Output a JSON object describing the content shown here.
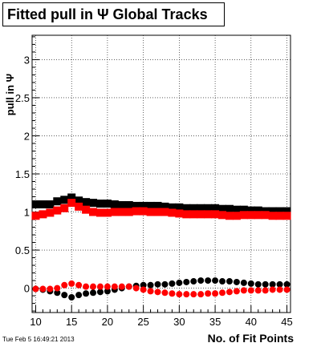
{
  "chart_data": {
    "type": "scatter",
    "title": "Fitted pull in  Ψ   Global Tracks",
    "xlabel": "No. of Fit Points",
    "ylabel": "pull in Ψ",
    "xlim": [
      9.5,
      45.5
    ],
    "ylim": [
      -0.32,
      3.32
    ],
    "xticks": [
      "10",
      "15",
      "20",
      "25",
      "30",
      "35",
      "40",
      "45"
    ],
    "yticks": [
      "0",
      "0.5",
      "1",
      "1.5",
      "2",
      "2.5",
      "3"
    ],
    "grid": true,
    "legend": "none",
    "x": [
      10,
      11,
      12,
      13,
      14,
      15,
      16,
      17,
      18,
      19,
      20,
      21,
      22,
      23,
      24,
      25,
      26,
      27,
      28,
      29,
      30,
      31,
      32,
      33,
      34,
      35,
      36,
      37,
      38,
      39,
      40,
      41,
      42,
      43,
      44,
      45
    ],
    "series": [
      {
        "color": "#000000",
        "marker": "square",
        "values": [
          1.1,
          1.1,
          1.1,
          1.14,
          1.16,
          1.19,
          1.15,
          1.13,
          1.12,
          1.11,
          1.11,
          1.1,
          1.09,
          1.09,
          1.08,
          1.08,
          1.08,
          1.08,
          1.07,
          1.06,
          1.06,
          1.05,
          1.05,
          1.05,
          1.05,
          1.05,
          1.04,
          1.04,
          1.03,
          1.03,
          1.02,
          1.02,
          1.01,
          1.01,
          1.01,
          1.01
        ]
      },
      {
        "color": "#ff0000",
        "marker": "square",
        "values": [
          0.95,
          0.97,
          0.99,
          1.02,
          1.05,
          1.12,
          1.07,
          1.03,
          1.0,
          0.99,
          0.99,
          1.0,
          1.0,
          1.0,
          1.01,
          1.01,
          1.0,
          1.0,
          1.0,
          0.99,
          0.98,
          0.97,
          0.97,
          0.97,
          0.97,
          0.97,
          0.96,
          0.95,
          0.95,
          0.96,
          0.96,
          0.96,
          0.96,
          0.95,
          0.95,
          0.95
        ]
      },
      {
        "color": "#000000",
        "marker": "circle",
        "values": [
          -0.01,
          -0.02,
          -0.04,
          -0.06,
          -0.09,
          -0.12,
          -0.09,
          -0.07,
          -0.06,
          -0.05,
          -0.04,
          -0.02,
          0.0,
          0.02,
          0.03,
          0.04,
          0.04,
          0.05,
          0.05,
          0.06,
          0.07,
          0.08,
          0.09,
          0.1,
          0.1,
          0.1,
          0.09,
          0.09,
          0.08,
          0.07,
          0.06,
          0.05,
          0.05,
          0.05,
          0.05,
          0.05
        ]
      },
      {
        "color": "#ff0000",
        "marker": "circle",
        "values": [
          -0.01,
          -0.01,
          -0.01,
          0.0,
          0.04,
          0.06,
          0.04,
          0.02,
          0.02,
          0.02,
          0.02,
          0.02,
          0.02,
          0.02,
          0.0,
          -0.02,
          -0.04,
          -0.05,
          -0.06,
          -0.07,
          -0.08,
          -0.08,
          -0.08,
          -0.08,
          -0.07,
          -0.07,
          -0.06,
          -0.05,
          -0.04,
          -0.03,
          -0.03,
          -0.03,
          -0.03,
          -0.02,
          -0.02,
          -0.02
        ]
      }
    ]
  },
  "footer": {
    "timestamp": "Tue Feb  5 16:49:21 2013"
  }
}
